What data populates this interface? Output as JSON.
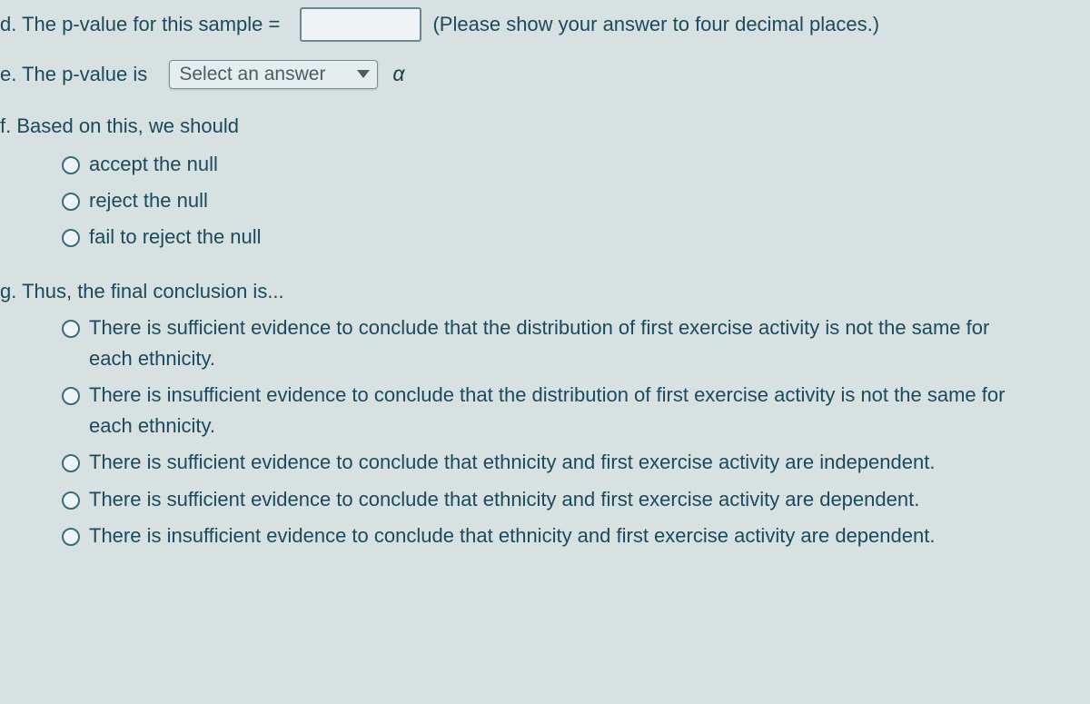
{
  "d": {
    "prefix": "d. The p-value for this sample = ",
    "value": "",
    "hint": "(Please show your answer to four decimal places.)"
  },
  "e": {
    "prefix": "e. The p-value is ",
    "select_placeholder": "Select an answer",
    "alpha": "α"
  },
  "f": {
    "prefix": "f. Based on this, we should",
    "options": [
      "accept the null",
      "reject the null",
      "fail to reject the null"
    ]
  },
  "g": {
    "prefix": "g. Thus, the final conclusion is...",
    "options": [
      "There is sufficient evidence to conclude that the distribution of first exercise activity is not the same for each ethnicity.",
      "There is insufficient evidence to conclude that the distribution of first exercise activity is not the same for each ethnicity.",
      "There is sufficient evidence to conclude that ethnicity and first exercise activity are independent.",
      "There is sufficient evidence to conclude that ethnicity and first exercise activity are dependent.",
      "There is insufficient evidence to conclude that ethnicity and first exercise activity are dependent."
    ]
  }
}
